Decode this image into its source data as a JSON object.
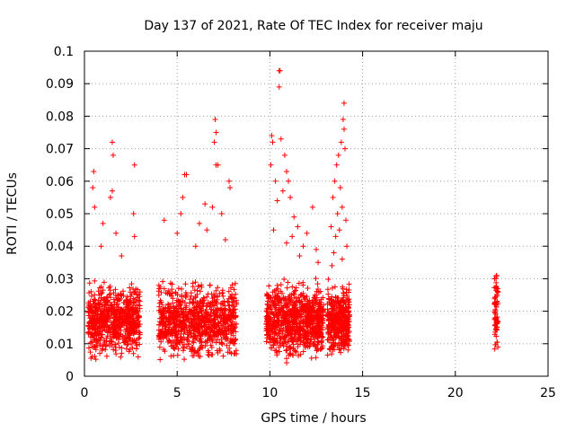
{
  "chart_data": {
    "type": "scatter",
    "title": "Day 137 of 2021, Rate Of TEC Index for receiver maju",
    "xlabel": "GPS time / hours",
    "ylabel": "ROTI / TECUs",
    "xlim": [
      0,
      25
    ],
    "ylim": [
      0,
      0.1
    ],
    "xticks": [
      0,
      5,
      10,
      15,
      20,
      25
    ],
    "xtick_labels": [
      "0",
      "5",
      "10",
      "15",
      "20",
      "25"
    ],
    "yticks": [
      0,
      0.01,
      0.02,
      0.03,
      0.04,
      0.05,
      0.06,
      0.07,
      0.08,
      0.09,
      0.1
    ],
    "ytick_labels": [
      "0",
      "0.01",
      "0.02",
      "0.03",
      "0.04",
      "0.05",
      "0.06",
      "0.07",
      "0.08",
      "0.09",
      "0.1"
    ],
    "grid": true,
    "marker": "plus",
    "color": "#ff0000",
    "series": [
      {
        "name": "ROTI",
        "clusters": [
          {
            "x_range": [
              0.2,
              3.0
            ],
            "y_range": [
              0.003,
              0.03
            ],
            "count": 700,
            "outliers": [
              [
                0.5,
                0.063
              ],
              [
                0.45,
                0.058
              ],
              [
                0.55,
                0.052
              ],
              [
                1.5,
                0.072
              ],
              [
                1.55,
                0.068
              ],
              [
                1.5,
                0.057
              ],
              [
                1.4,
                0.055
              ],
              [
                2.7,
                0.065
              ],
              [
                2.65,
                0.05
              ],
              [
                2.7,
                0.043
              ],
              [
                1.7,
                0.044
              ],
              [
                1.0,
                0.047
              ],
              [
                0.9,
                0.04
              ],
              [
                2.0,
                0.037
              ]
            ]
          },
          {
            "x_range": [
              4.0,
              8.2
            ],
            "y_range": [
              0.003,
              0.03
            ],
            "count": 900,
            "outliers": [
              [
                4.3,
                0.048
              ],
              [
                5.4,
                0.062
              ],
              [
                5.5,
                0.062
              ],
              [
                5.3,
                0.055
              ],
              [
                5.2,
                0.05
              ],
              [
                7.05,
                0.079
              ],
              [
                7.1,
                0.075
              ],
              [
                7.0,
                0.072
              ],
              [
                7.1,
                0.065
              ],
              [
                7.2,
                0.065
              ],
              [
                7.8,
                0.06
              ],
              [
                7.85,
                0.058
              ],
              [
                6.5,
                0.053
              ],
              [
                6.9,
                0.052
              ],
              [
                7.4,
                0.05
              ],
              [
                6.2,
                0.047
              ],
              [
                5.0,
                0.044
              ],
              [
                6.6,
                0.045
              ],
              [
                7.6,
                0.042
              ],
              [
                6.0,
                0.04
              ]
            ]
          },
          {
            "x_range": [
              9.8,
              12.9
            ],
            "y_range": [
              0.003,
              0.03
            ],
            "count": 850,
            "outliers": [
              [
                10.5,
                0.094
              ],
              [
                10.55,
                0.094
              ],
              [
                10.5,
                0.089
              ],
              [
                10.1,
                0.074
              ],
              [
                10.15,
                0.072
              ],
              [
                10.6,
                0.073
              ],
              [
                10.05,
                0.065
              ],
              [
                10.8,
                0.068
              ],
              [
                10.9,
                0.063
              ],
              [
                11.0,
                0.06
              ],
              [
                10.3,
                0.06
              ],
              [
                10.7,
                0.057
              ],
              [
                11.1,
                0.055
              ],
              [
                10.4,
                0.054
              ],
              [
                12.3,
                0.052
              ],
              [
                11.3,
                0.049
              ],
              [
                11.5,
                0.046
              ],
              [
                10.2,
                0.045
              ],
              [
                11.2,
                0.043
              ],
              [
                12.0,
                0.044
              ],
              [
                11.8,
                0.04
              ],
              [
                10.9,
                0.041
              ],
              [
                12.5,
                0.039
              ],
              [
                11.6,
                0.037
              ],
              [
                12.6,
                0.035
              ]
            ]
          },
          {
            "x_range": [
              13.1,
              14.3
            ],
            "y_range": [
              0.003,
              0.03
            ],
            "count": 400,
            "outliers": [
              [
                14.0,
                0.084
              ],
              [
                13.95,
                0.079
              ],
              [
                14.0,
                0.076
              ],
              [
                13.85,
                0.072
              ],
              [
                14.05,
                0.07
              ],
              [
                13.7,
                0.068
              ],
              [
                13.6,
                0.065
              ],
              [
                13.5,
                0.06
              ],
              [
                13.8,
                0.058
              ],
              [
                13.4,
                0.055
              ],
              [
                13.9,
                0.052
              ],
              [
                13.65,
                0.05
              ],
              [
                14.1,
                0.048
              ],
              [
                13.3,
                0.046
              ],
              [
                13.75,
                0.045
              ],
              [
                13.55,
                0.043
              ],
              [
                14.15,
                0.04
              ],
              [
                13.45,
                0.038
              ],
              [
                13.9,
                0.036
              ],
              [
                13.35,
                0.034
              ]
            ]
          },
          {
            "x_range": [
              22.1,
              22.3
            ],
            "y_range": [
              0.005,
              0.033
            ],
            "count": 70,
            "outliers": []
          }
        ]
      }
    ]
  }
}
